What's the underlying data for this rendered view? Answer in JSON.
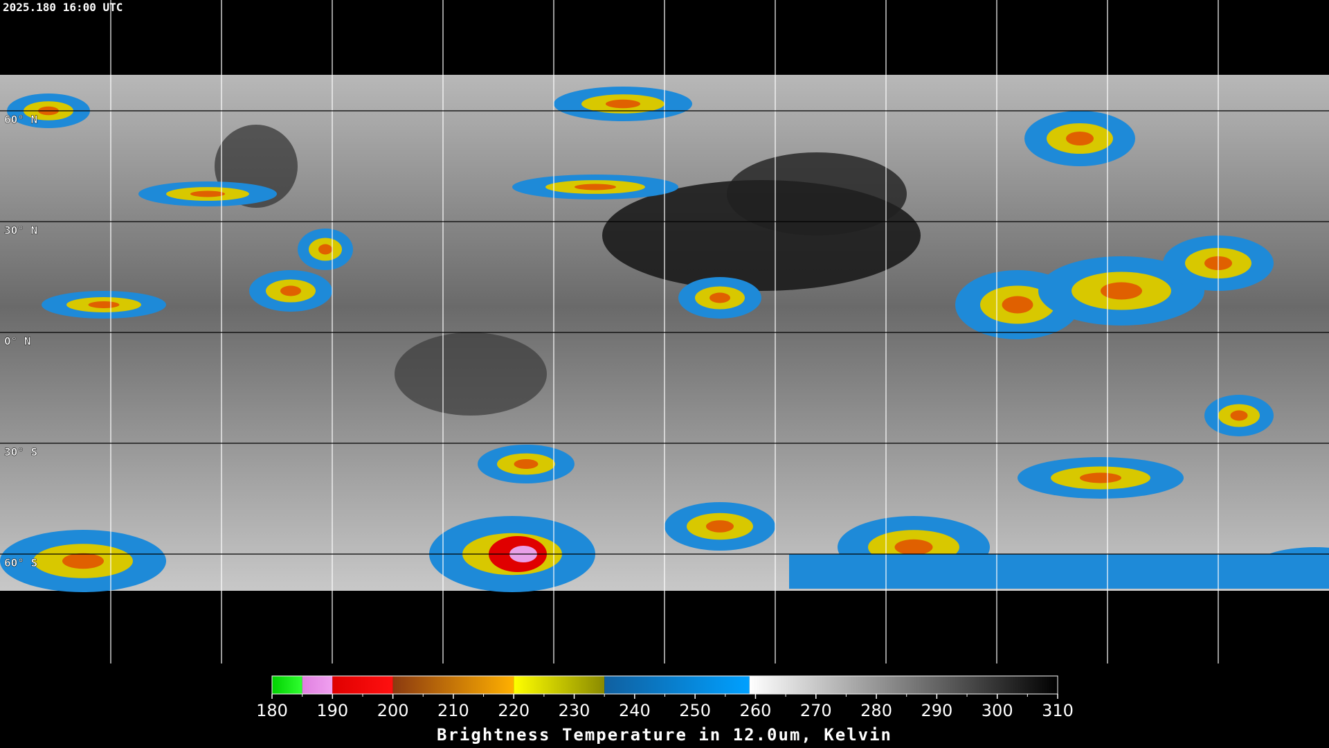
{
  "header": {
    "timestamp": "2025.180 16:00 UTC"
  },
  "map": {
    "lat_labels": [
      "60° N",
      "30° N",
      "0° N",
      "30° S",
      "60° S"
    ]
  },
  "colorbar": {
    "label": "Brightness Temperature in 12.0um, Kelvin",
    "range": [
      180,
      310
    ],
    "ticks": [
      180,
      190,
      200,
      210,
      220,
      230,
      240,
      250,
      260,
      270,
      280,
      290,
      300,
      310
    ],
    "segments": [
      {
        "start": 180,
        "end": 185,
        "colors": [
          "#00d000",
          "#30ff30"
        ]
      },
      {
        "start": 185,
        "end": 190,
        "colors": [
          "#e080e0",
          "#f0a0f0"
        ]
      },
      {
        "start": 190,
        "end": 200,
        "colors": [
          "#e00000",
          "#ff1010"
        ]
      },
      {
        "start": 200,
        "end": 220,
        "colors": [
          "#8b3a10",
          "#ffb000"
        ]
      },
      {
        "start": 220,
        "end": 235,
        "colors": [
          "#ffff00",
          "#8a8a00"
        ]
      },
      {
        "start": 235,
        "end": 259,
        "colors": [
          "#1060a0",
          "#00a0ff"
        ]
      },
      {
        "start": 259,
        "end": 310,
        "colors": [
          "#ffffff",
          "#000000"
        ]
      }
    ]
  }
}
